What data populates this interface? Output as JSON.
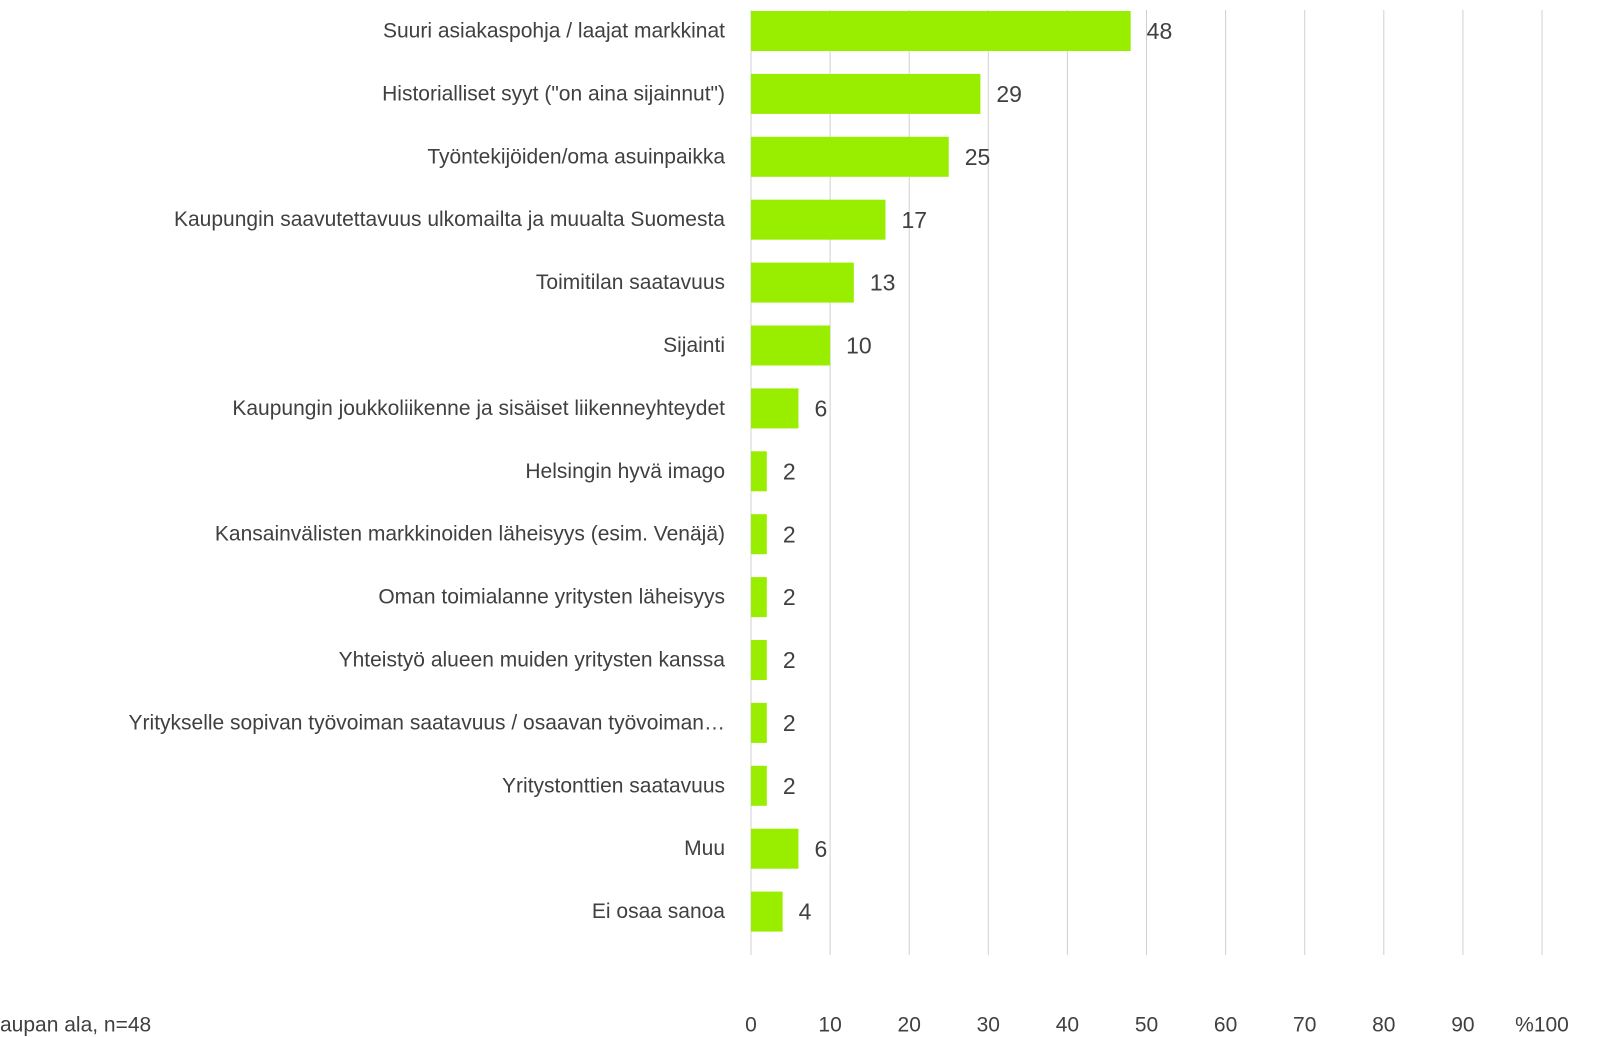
{
  "chart_data": {
    "type": "bar",
    "orientation": "horizontal",
    "categories": [
      "Suuri asiakaspohja / laajat markkinat",
      "Historialliset syyt (\"on aina sijainnut\")",
      "Työntekijöiden/oma asuinpaikka",
      "Kaupungin saavutettavuus ulkomailta ja muualta Suomesta",
      "Toimitilan saatavuus",
      "Sijainti",
      "Kaupungin joukkoliikenne ja sisäiset liikenneyhteydet",
      "Helsingin hyvä imago",
      "Kansainvälisten markkinoiden läheisyys (esim. Venäjä)",
      "Oman toimialanne yritysten läheisyys",
      "Yhteistyö alueen muiden yritysten kanssa",
      "Yritykselle sopivan työvoiman saatavuus / osaavan työvoiman…",
      "Yritystonttien saatavuus",
      "Muu",
      "Ei osaa sanoa"
    ],
    "values": [
      48,
      29,
      25,
      17,
      13,
      10,
      6,
      2,
      2,
      2,
      2,
      2,
      2,
      6,
      4
    ],
    "color": "#99ee00",
    "xlim": [
      0,
      100
    ],
    "xticks": [
      0,
      10,
      20,
      30,
      40,
      50,
      60,
      70,
      80,
      90,
      {
        "value": 100,
        "label": "%100"
      }
    ],
    "grid": true,
    "note": "aupan ala, n=48"
  }
}
